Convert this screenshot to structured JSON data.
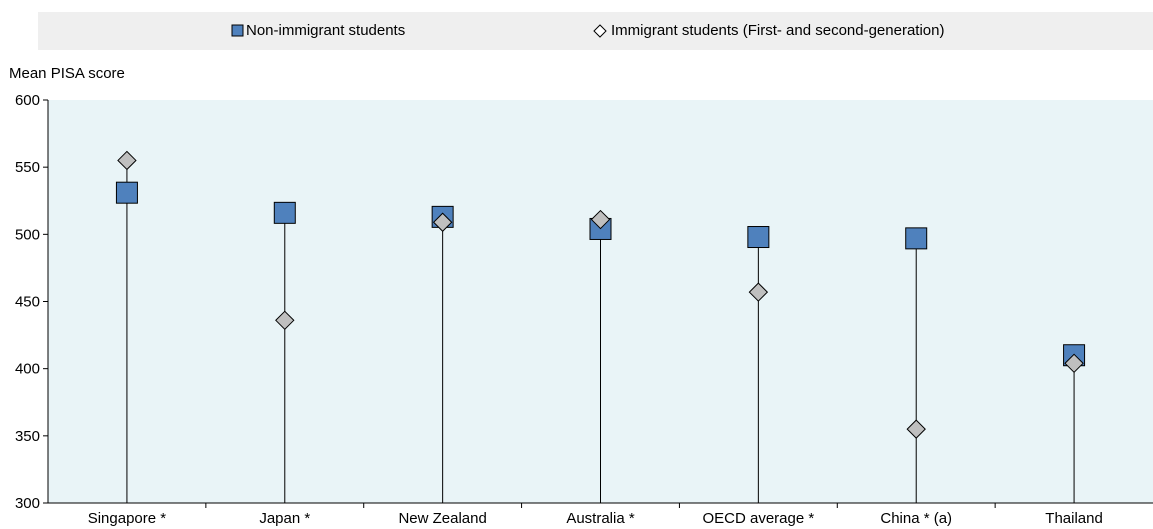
{
  "chart_data": {
    "type": "scatter",
    "title": "",
    "xlabel": "",
    "ylabel": "Mean PISA score",
    "ylim": [
      300,
      600
    ],
    "yticks": [
      300,
      350,
      400,
      450,
      500,
      550,
      600
    ],
    "grid": false,
    "legend_position": "top",
    "categories": [
      "Singapore *",
      "Japan *",
      "New Zealand",
      "Australia *",
      "OECD average *",
      "China * (a)",
      "Thailand"
    ],
    "series": [
      {
        "name": "Non-immigrant students",
        "marker": "square",
        "color": "#4f81bd",
        "values": [
          531,
          516,
          513,
          504,
          498,
          497,
          410
        ]
      },
      {
        "name": "Immigrant students (First- and second-generation)",
        "marker": "diamond",
        "color": "#bfbfbf",
        "values": [
          555,
          436,
          509,
          511,
          457,
          355,
          404
        ]
      }
    ]
  },
  "colors": {
    "plot_background": "#e9f4f7",
    "legend_background": "#efefef",
    "axis": "#000000"
  }
}
